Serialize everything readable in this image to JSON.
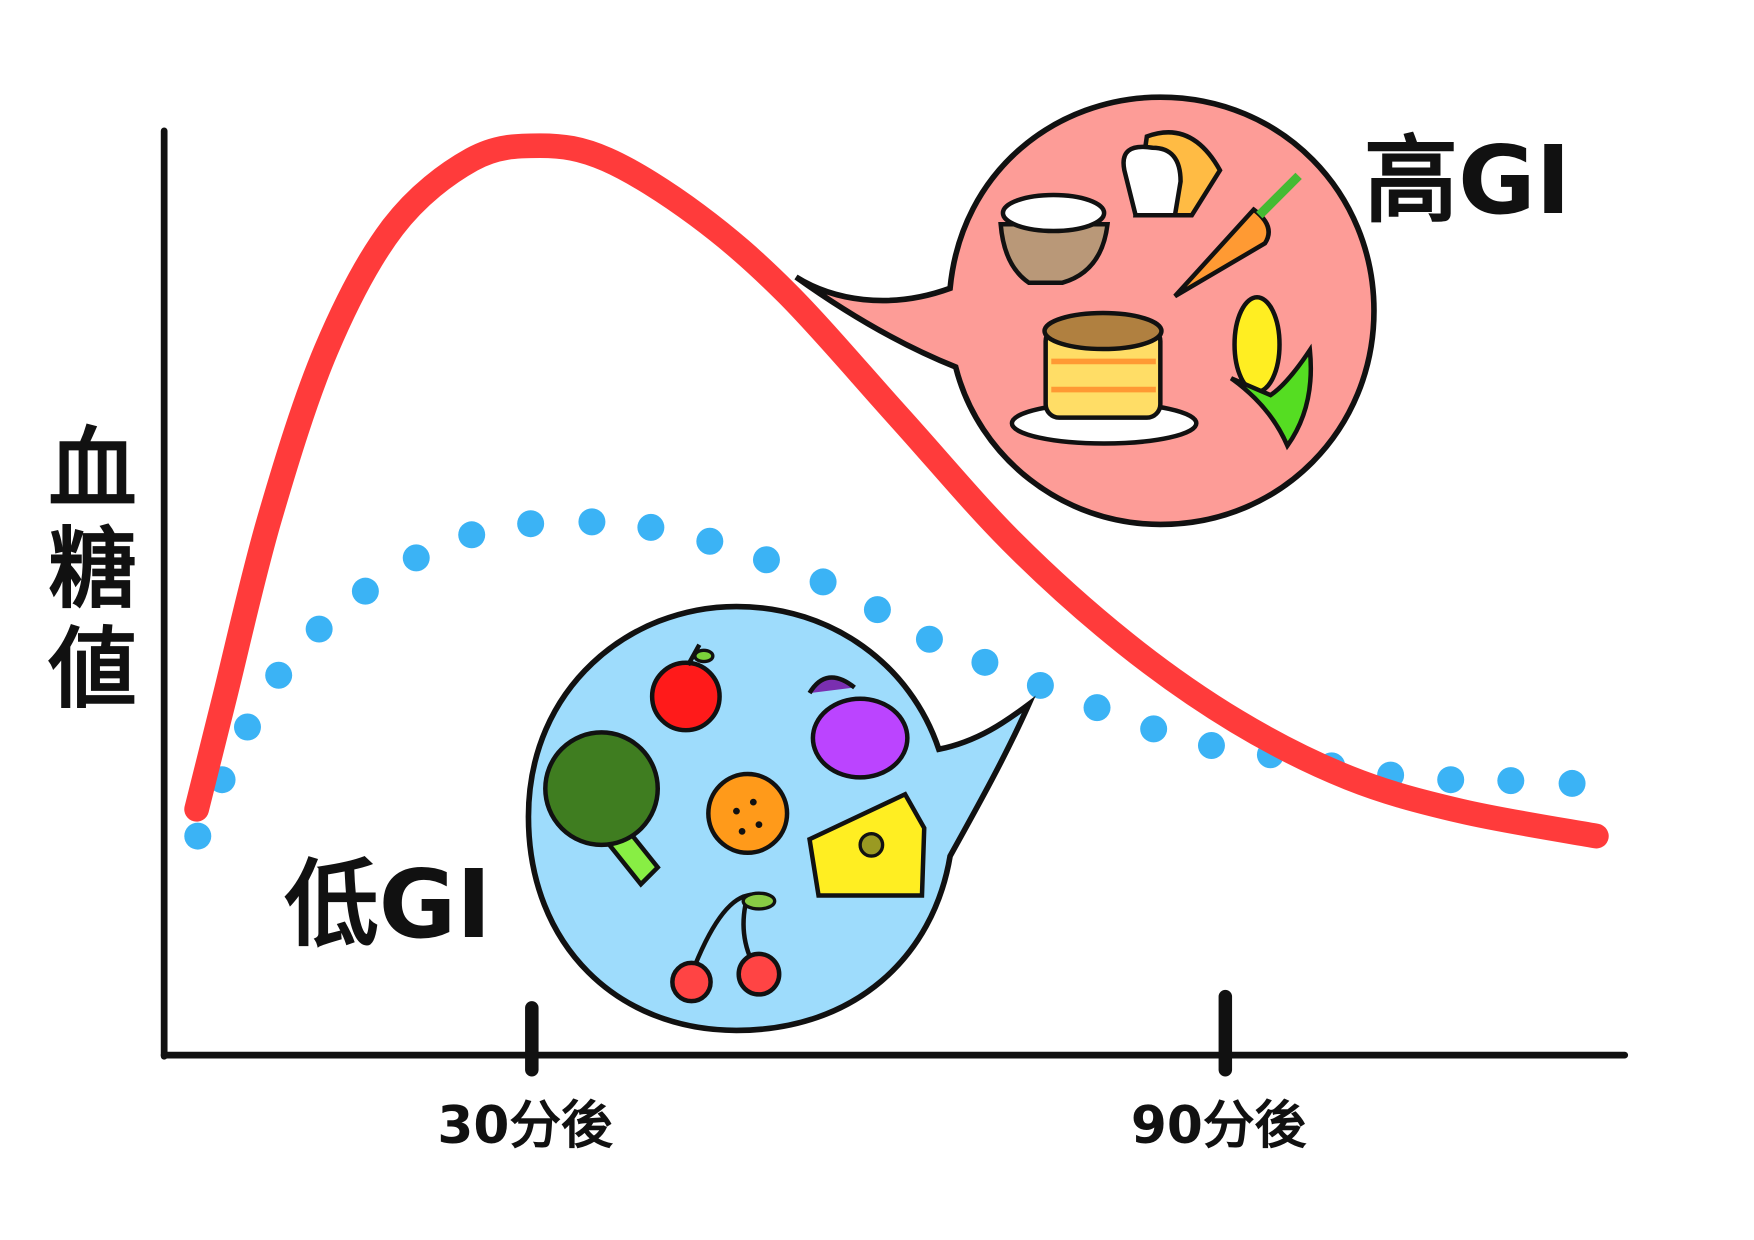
{
  "chart_data": {
    "type": "line",
    "title": "",
    "ylabel": "血糖値",
    "xlabel": "",
    "x_tick_labels": [
      {
        "x": 30,
        "label": "30分後"
      },
      {
        "x": 90,
        "label": "90分後"
      }
    ],
    "xlim": [
      -1,
      125
    ],
    "ylim": [
      0,
      100
    ],
    "grid": false,
    "series": [
      {
        "name": "高GI",
        "style": "solid",
        "color": "#ff3b3b",
        "points": [
          [
            1,
            26.6
          ],
          [
            3.4,
            38.6
          ],
          [
            7.3,
            58
          ],
          [
            12.2,
            76.3
          ],
          [
            18,
            89.6
          ],
          [
            24.8,
            96.9
          ],
          [
            30.7,
            98.4
          ],
          [
            36.5,
            96.9
          ],
          [
            44.3,
            90.9
          ],
          [
            52.1,
            82.4
          ],
          [
            61.8,
            69
          ],
          [
            71.5,
            55.6
          ],
          [
            81.3,
            44.6
          ],
          [
            91,
            36.1
          ],
          [
            100.7,
            30
          ],
          [
            110.4,
            26.4
          ],
          [
            122.1,
            23.7
          ]
        ]
      },
      {
        "name": "低GI",
        "style": "dotted",
        "color": "#3bb3f5",
        "points": [
          [
            1.1,
            23.7
          ],
          [
            3.2,
            29.8
          ],
          [
            5.4,
            35.5
          ],
          [
            8.1,
            41.1
          ],
          [
            11.6,
            46.1
          ],
          [
            15.6,
            50.2
          ],
          [
            20,
            53.8
          ],
          [
            24.8,
            56.3
          ],
          [
            29.9,
            57.5
          ],
          [
            35.2,
            57.7
          ],
          [
            40.3,
            57.1
          ],
          [
            45.4,
            55.6
          ],
          [
            50.3,
            53.6
          ],
          [
            55.2,
            51.2
          ],
          [
            59.9,
            48.2
          ],
          [
            64.4,
            45
          ],
          [
            69.2,
            42.5
          ],
          [
            74,
            40
          ],
          [
            78.9,
            37.6
          ],
          [
            83.8,
            35.3
          ],
          [
            88.8,
            33.5
          ],
          [
            93.9,
            32.5
          ],
          [
            99.2,
            31.3
          ],
          [
            104.3,
            30.3
          ],
          [
            109.5,
            29.8
          ],
          [
            114.7,
            29.7
          ],
          [
            120,
            29.4
          ]
        ]
      }
    ]
  },
  "bubbles": {
    "high": {
      "fill": "#fd9c97",
      "icons": [
        "rice-bowl",
        "bread",
        "carrot",
        "pancakes",
        "corn"
      ]
    },
    "low": {
      "fill": "#9edcfc",
      "icons": [
        "apple",
        "eggplant",
        "broccoli",
        "orange",
        "cheese",
        "cherries"
      ]
    }
  }
}
